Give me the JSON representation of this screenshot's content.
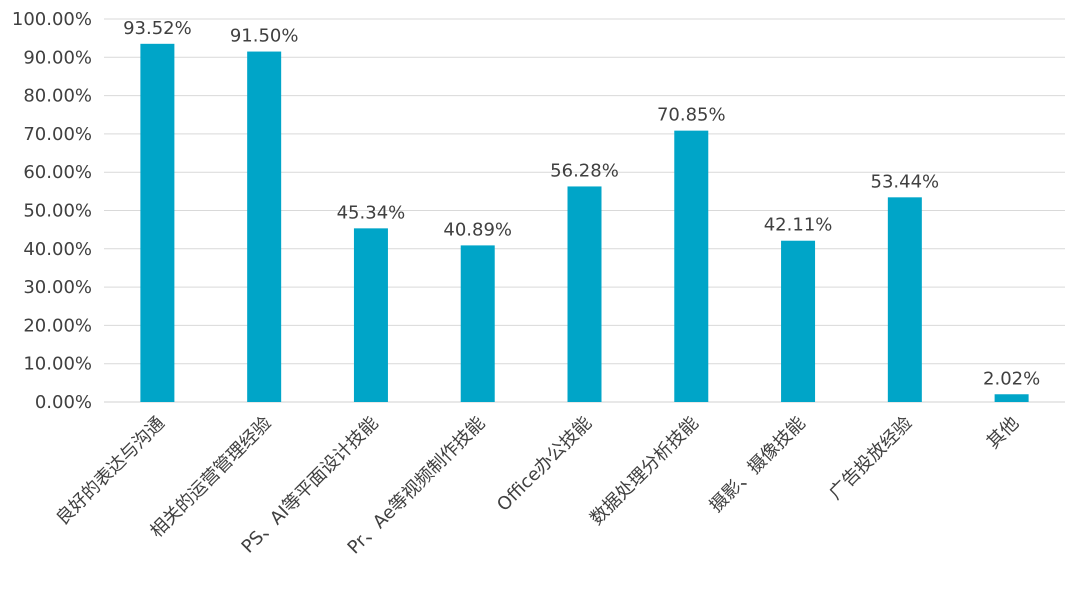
{
  "chart_data": {
    "type": "bar",
    "categories": [
      "良好的表达与沟通",
      "相关的运营管理经验",
      "PS、AI等平面设计技能",
      "Pr、Ae等视频制作技能",
      "Office办公技能",
      "数据处理分析技能",
      "摄影、摄像技能",
      "广告投放经验",
      "其他"
    ],
    "values": [
      93.52,
      91.5,
      45.34,
      40.89,
      56.28,
      70.85,
      42.11,
      53.44,
      2.02
    ],
    "data_labels": [
      "93.52%",
      "91.50%",
      "45.34%",
      "40.89%",
      "56.28%",
      "70.85%",
      "42.11%",
      "53.44%",
      "2.02%"
    ],
    "yticks": [
      "0.00%",
      "10.00%",
      "20.00%",
      "30.00%",
      "40.00%",
      "50.00%",
      "60.00%",
      "70.00%",
      "80.00%",
      "90.00%",
      "100.00%"
    ],
    "ylim": [
      0,
      100
    ],
    "grid": true,
    "legend": "none",
    "title": "",
    "xlabel": "",
    "ylabel": "",
    "colors": {
      "bar": "#00A5C8",
      "grid": "#d9d9d9",
      "text": "#404040"
    }
  }
}
